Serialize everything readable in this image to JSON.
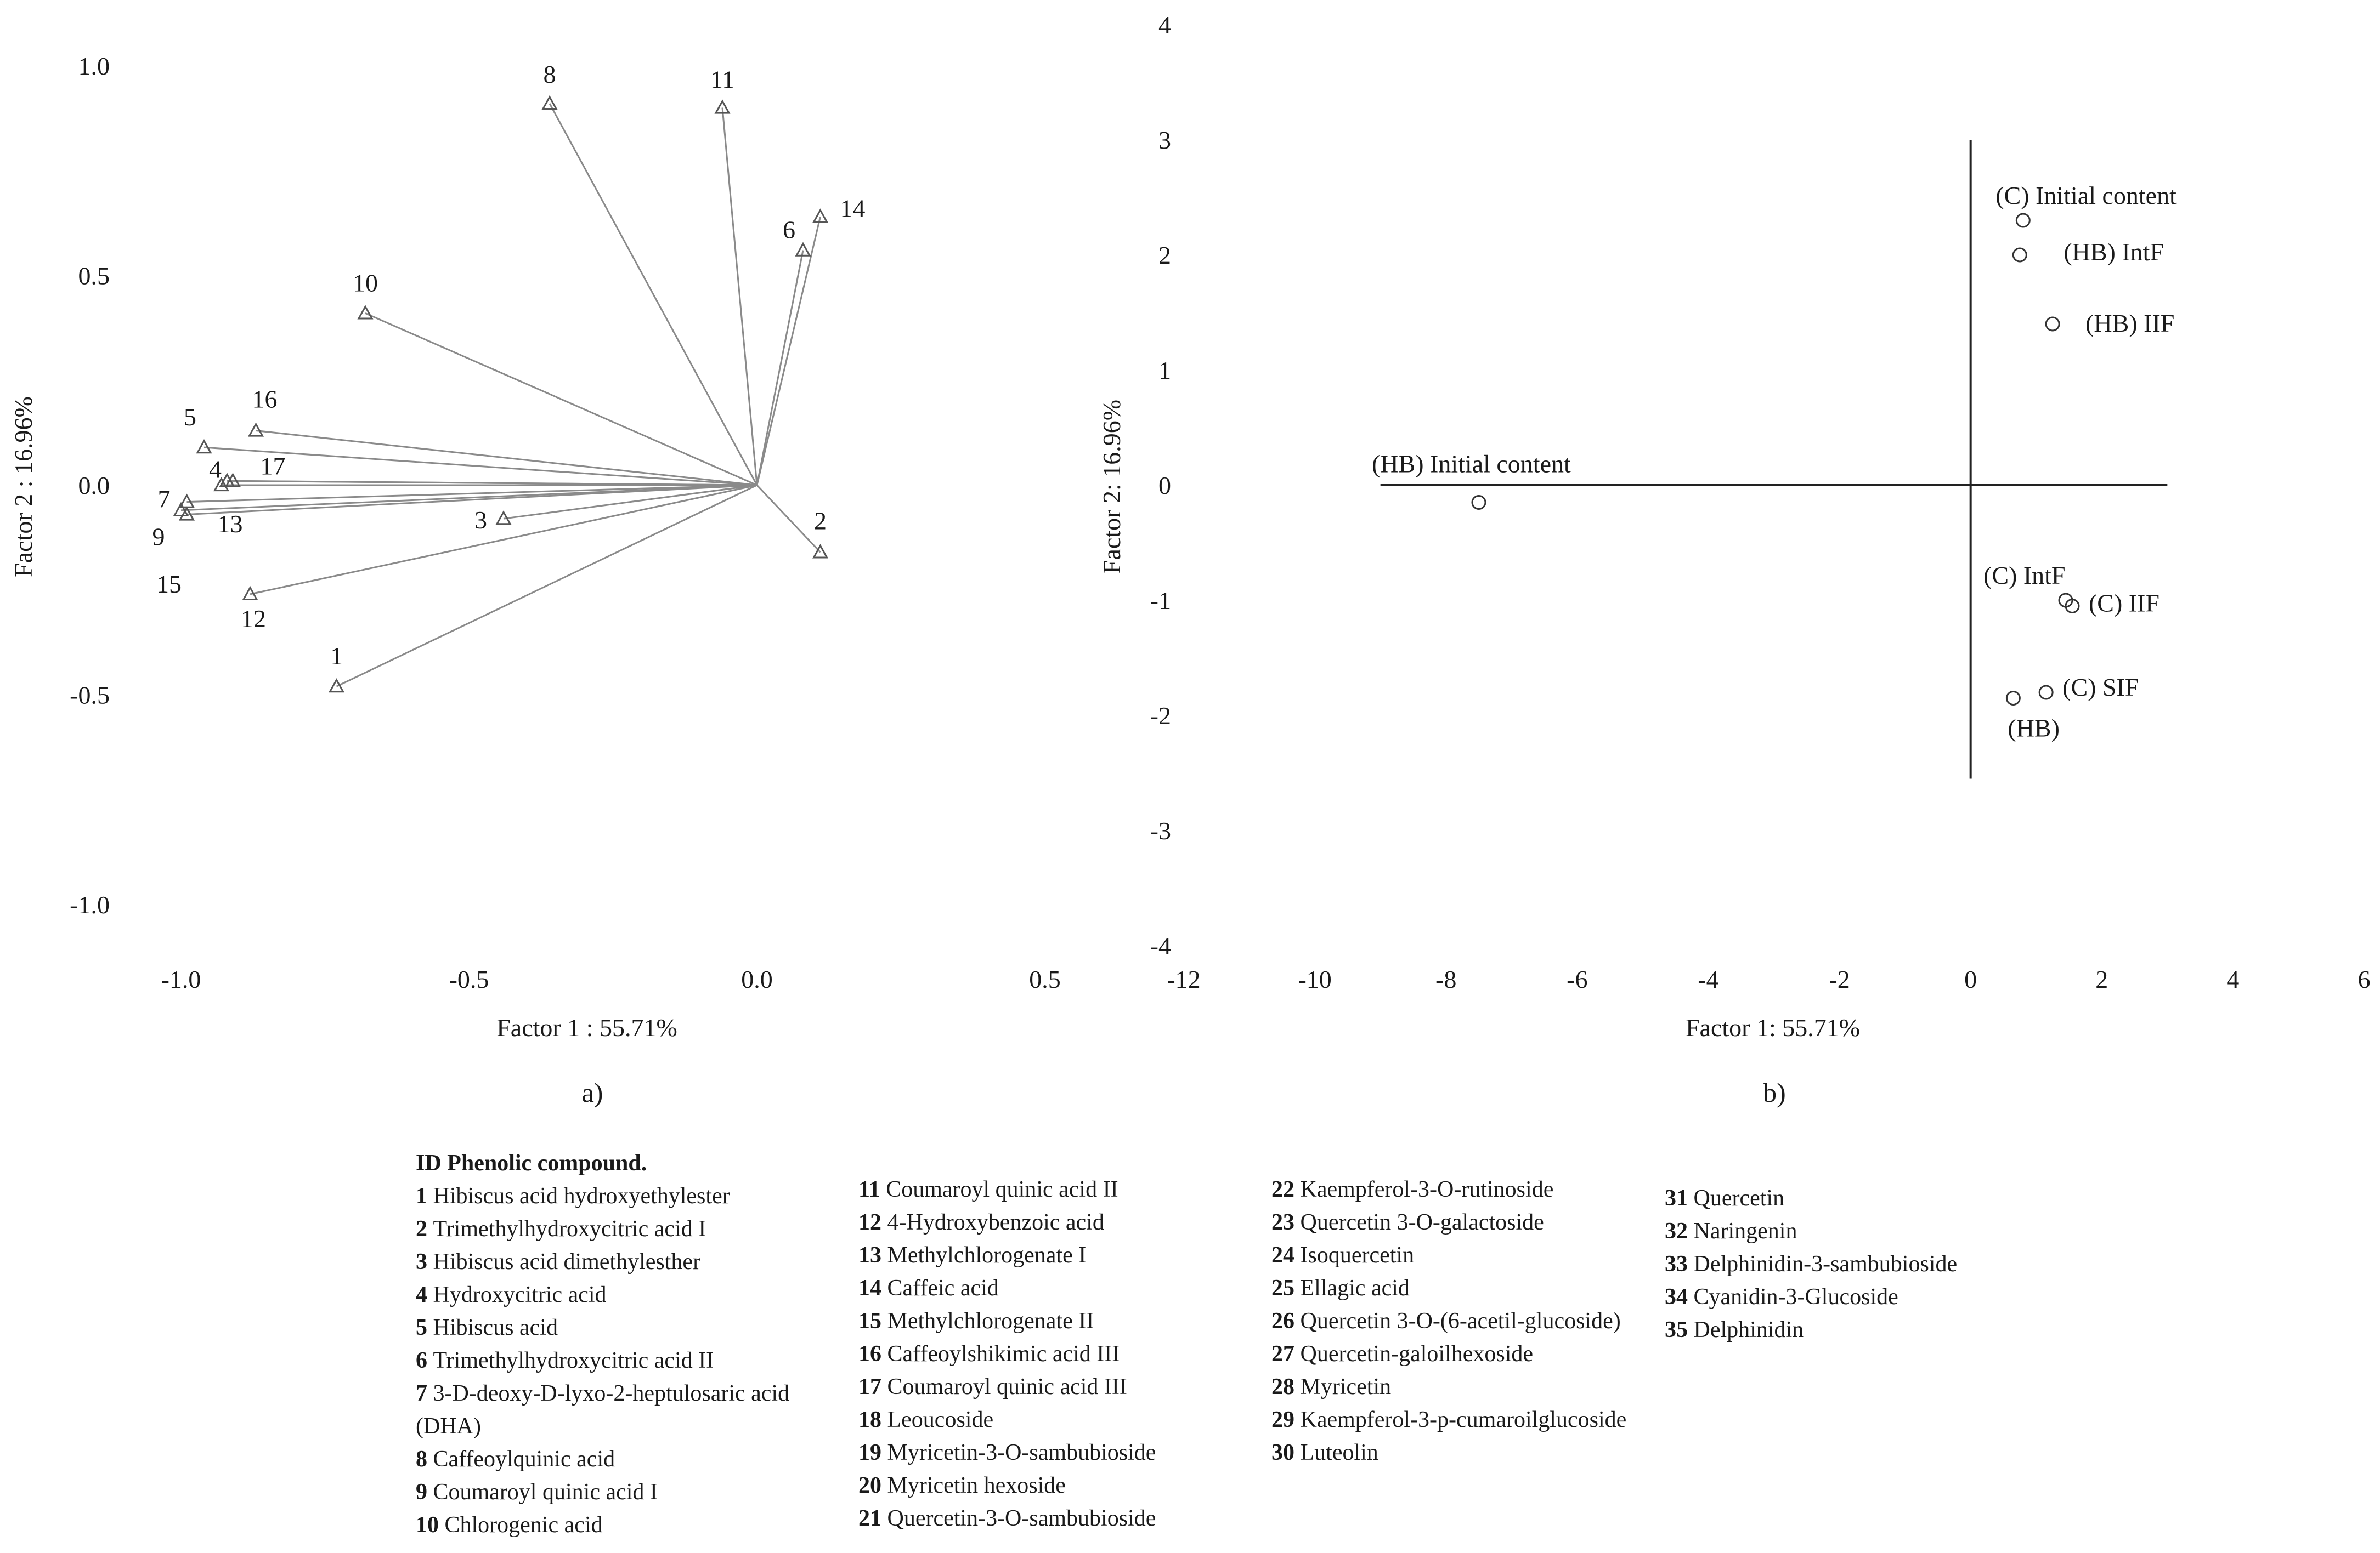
{
  "chart_data": [
    {
      "type": "scatter",
      "subtype": "loading-plot",
      "panel_label": "a)",
      "xlabel": "Factor 1 : 55.71%",
      "ylabel": "Factor 2 : 16.96%",
      "xlim": [
        -1.0,
        0.5
      ],
      "ylim": [
        -1.0,
        1.0
      ],
      "xticks": [
        "-1.0",
        "-0.5",
        "0.0",
        "0.5"
      ],
      "yticks": [
        "1.0",
        "0.5",
        "0.0",
        "-0.5",
        "-1.0"
      ],
      "points": [
        {
          "label": "1",
          "x": -0.73,
          "y": -0.48
        },
        {
          "label": "2",
          "x": 0.11,
          "y": -0.16
        },
        {
          "label": "3",
          "x": -0.44,
          "y": -0.08
        },
        {
          "label": "4",
          "x": -0.92,
          "y": 0.01
        },
        {
          "label": "5",
          "x": -0.96,
          "y": 0.09
        },
        {
          "label": "6",
          "x": 0.08,
          "y": 0.56
        },
        {
          "label": "7",
          "x": -0.99,
          "y": -0.04
        },
        {
          "label": "8",
          "x": -0.36,
          "y": 0.91
        },
        {
          "label": "9",
          "x": -0.99,
          "y": -0.07
        },
        {
          "label": "10",
          "x": -0.68,
          "y": 0.41
        },
        {
          "label": "11",
          "x": -0.06,
          "y": 0.9
        },
        {
          "label": "12",
          "x": -0.88,
          "y": -0.26
        },
        {
          "label": "13",
          "x": -0.93,
          "y": 0.0
        },
        {
          "label": "14",
          "x": 0.11,
          "y": 0.64
        },
        {
          "label": "15",
          "x": -1.0,
          "y": -0.06
        },
        {
          "label": "16",
          "x": -0.87,
          "y": 0.13
        },
        {
          "label": "17",
          "x": -0.91,
          "y": 0.01
        }
      ]
    },
    {
      "type": "scatter",
      "subtype": "score-plot",
      "panel_label": "b)",
      "xlabel": "Factor 1: 55.71%",
      "ylabel": "Factor 2: 16.96%",
      "xlim": [
        -12,
        6
      ],
      "ylim": [
        -4,
        4
      ],
      "xticks": [
        "-12",
        "-10",
        "-8",
        "-6",
        "-4",
        "-2",
        "0",
        "2",
        "4",
        "6"
      ],
      "yticks": [
        "4",
        "3",
        "2",
        "1",
        "0",
        "-1",
        "-2",
        "-3",
        "-4"
      ],
      "points": [
        {
          "label": "(C) Initial content",
          "x": 0.8,
          "y": 2.3
        },
        {
          "label": "(HB) IntF",
          "x": 0.75,
          "y": 2.0
        },
        {
          "label": "(HB) IIF",
          "x": 1.25,
          "y": 1.4
        },
        {
          "label": "(HB) Initial content",
          "x": -7.5,
          "y": -0.15
        },
        {
          "label": "(C) IntF",
          "x": 1.45,
          "y": -1.0
        },
        {
          "label": "(C) IIF",
          "x": 1.55,
          "y": -1.05
        },
        {
          "label": "(C) SIF",
          "x": 1.15,
          "y": -1.8
        },
        {
          "label": "(HB)",
          "x": 0.65,
          "y": -1.85
        }
      ]
    }
  ],
  "legend": {
    "title": "ID Phenolic compound.",
    "columns": [
      [
        {
          "id": "1",
          "name": "Hibiscus acid hydroxyethylester"
        },
        {
          "id": "2",
          "name": "Trimethylhydroxycitric acid I"
        },
        {
          "id": "3",
          "name": "Hibiscus acid dimethylesther"
        },
        {
          "id": "4",
          "name": "Hydroxycitric acid"
        },
        {
          "id": "5",
          "name": "Hibiscus acid"
        },
        {
          "id": "6",
          "name": "Trimethylhydroxycitric acid II"
        },
        {
          "id": "7",
          "name": "3-D-deoxy-D-lyxo-2-heptulosaric acid (DHA)"
        },
        {
          "id": "8",
          "name": "Caffeoylquinic acid"
        },
        {
          "id": "9",
          "name": "Coumaroyl quinic acid I"
        },
        {
          "id": "10",
          "name": "Chlorogenic acid"
        }
      ],
      [
        {
          "id": "11",
          "name": "Coumaroyl quinic acid II"
        },
        {
          "id": "12",
          "name": "4-Hydroxybenzoic acid"
        },
        {
          "id": "13",
          "name": "Methylchlorogenate I"
        },
        {
          "id": "14",
          "name": "Caffeic acid"
        },
        {
          "id": "15",
          "name": "Methylchlorogenate II"
        },
        {
          "id": "16",
          "name": "Caffeoylshikimic acid III"
        },
        {
          "id": "17",
          "name": "Coumaroyl quinic acid III"
        },
        {
          "id": "18",
          "name": "Leoucoside"
        },
        {
          "id": "19",
          "name": "Myricetin-3-O-sambubioside"
        },
        {
          "id": "20",
          "name": "Myricetin hexoside"
        },
        {
          "id": "21",
          "name": "Quercetin-3-O-sambubioside"
        }
      ],
      [
        {
          "id": "22",
          "name": "Kaempferol-3-O-rutinoside"
        },
        {
          "id": "23",
          "name": "Quercetin 3-O-galactoside"
        },
        {
          "id": "24",
          "name": "Isoquercetin"
        },
        {
          "id": "25",
          "name": "Ellagic acid"
        },
        {
          "id": "26",
          "name": "Quercetin 3-O-(6-acetil-glucoside)"
        },
        {
          "id": "27",
          "name": "Quercetin-galoilhexoside"
        },
        {
          "id": "28",
          "name": "Myricetin"
        },
        {
          "id": "29",
          "name": "Kaempferol-3-p-cumaroilglucoside"
        },
        {
          "id": "30",
          "name": "Luteolin"
        }
      ],
      [
        {
          "id": "31",
          "name": "Quercetin"
        },
        {
          "id": "32",
          "name": "Naringenin"
        },
        {
          "id": "33",
          "name": "Delphinidin-3-sambubioside"
        },
        {
          "id": "34",
          "name": "Cyanidin-3-Glucoside"
        },
        {
          "id": "35",
          "name": "Delphinidin"
        }
      ]
    ]
  }
}
